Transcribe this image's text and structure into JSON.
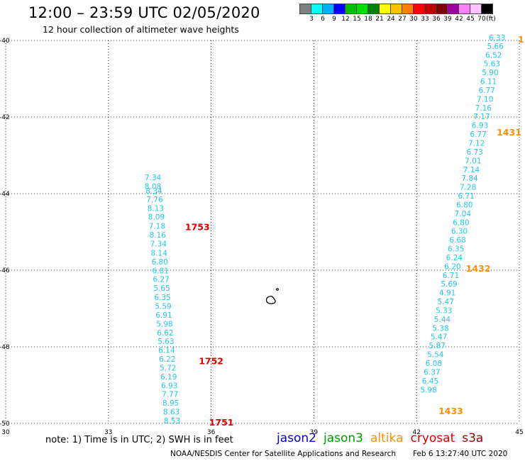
{
  "header": {
    "title": "12:00 – 23:59 UTC 02/05/2020",
    "subtitle": "12 hour collection of altimeter wave heights"
  },
  "legend": {
    "colors": [
      "#808080",
      "#00ffff",
      "#00b0ff",
      "#0000ff",
      "#00c000",
      "#00e000",
      "#008000",
      "#ffff00",
      "#ffc000",
      "#ff8000",
      "#ff0000",
      "#c00000",
      "#800000",
      "#a000a0",
      "#ff80ff",
      "#ffc0ff",
      "#000000"
    ],
    "labels": [
      "3",
      "6",
      "9",
      "12",
      "15",
      "18",
      "21",
      "24",
      "27",
      "30",
      "33",
      "36",
      "39",
      "42",
      "45",
      "70",
      "(ft)"
    ]
  },
  "map": {
    "x_ticks": [
      "30",
      "33",
      "36",
      "39",
      "42",
      "45"
    ],
    "y_ticks": [
      "-40",
      "-42",
      "-44",
      "-46",
      "-48",
      "-50"
    ],
    "xlim": [
      30,
      45
    ],
    "ylim": [
      -50,
      -40
    ],
    "grid": true,
    "wave_color": "#1ec8e6",
    "time_color_red": "#e00000",
    "time_color_orange": "#ff9000"
  },
  "chart_data": {
    "type": "scatter",
    "title": "12:00 – 23:59 UTC 02/05/2020",
    "subtitle": "12 hour collection of altimeter wave heights",
    "xlim": [
      30,
      45
    ],
    "ylim": [
      -50,
      -40
    ],
    "grid": true,
    "track_west": [
      {
        "lon": 34.3,
        "lat": -43.65,
        "swh": "7.34"
      },
      {
        "lon": 34.3,
        "lat": -43.88,
        "swh": "8.08"
      },
      {
        "lon": 34.33,
        "lat": -44.0,
        "swh": "8.34"
      },
      {
        "lon": 34.35,
        "lat": -44.22,
        "swh": "7.76"
      },
      {
        "lon": 34.38,
        "lat": -44.45,
        "swh": "8.13"
      },
      {
        "lon": 34.4,
        "lat": -44.68,
        "swh": "8.09"
      },
      {
        "lon": 34.42,
        "lat": -44.92,
        "swh": "7.18"
      },
      {
        "lon": 34.44,
        "lat": -45.15,
        "swh": "8.16"
      },
      {
        "lon": 34.46,
        "lat": -45.38,
        "swh": "7.34"
      },
      {
        "lon": 34.48,
        "lat": -45.62,
        "swh": "8.14"
      },
      {
        "lon": 34.5,
        "lat": -45.85,
        "swh": "6.80"
      },
      {
        "lon": 34.52,
        "lat": -46.08,
        "swh": "6.81"
      },
      {
        "lon": 34.54,
        "lat": -46.31,
        "swh": "6.27"
      },
      {
        "lon": 34.56,
        "lat": -46.54,
        "swh": "5.65"
      },
      {
        "lon": 34.58,
        "lat": -46.78,
        "swh": "6.35"
      },
      {
        "lon": 34.6,
        "lat": -47.01,
        "swh": "5.59"
      },
      {
        "lon": 34.62,
        "lat": -47.24,
        "swh": "6.91"
      },
      {
        "lon": 34.64,
        "lat": -47.47,
        "swh": "5.98"
      },
      {
        "lon": 34.66,
        "lat": -47.7,
        "swh": "6.62"
      },
      {
        "lon": 34.68,
        "lat": -47.93,
        "swh": "5.63"
      },
      {
        "lon": 34.7,
        "lat": -48.16,
        "swh": "6.14"
      },
      {
        "lon": 34.72,
        "lat": -48.39,
        "swh": "6.22"
      },
      {
        "lon": 34.74,
        "lat": -48.62,
        "swh": "5.72"
      },
      {
        "lon": 34.76,
        "lat": -48.85,
        "swh": "6.19"
      },
      {
        "lon": 34.78,
        "lat": -49.08,
        "swh": "6.93"
      },
      {
        "lon": 34.8,
        "lat": -49.31,
        "swh": "7.77"
      },
      {
        "lon": 34.82,
        "lat": -49.54,
        "swh": "8.95"
      },
      {
        "lon": 34.84,
        "lat": -49.77,
        "swh": "8.63"
      },
      {
        "lon": 34.86,
        "lat": -50.0,
        "swh": "8.53"
      }
    ],
    "track_east": [
      {
        "lon": 44.35,
        "lat": -40.0,
        "swh": "6.33"
      },
      {
        "lon": 44.3,
        "lat": -40.22,
        "swh": "5.66"
      },
      {
        "lon": 44.25,
        "lat": -40.45,
        "swh": "6.52"
      },
      {
        "lon": 44.2,
        "lat": -40.68,
        "swh": "5.63"
      },
      {
        "lon": 44.15,
        "lat": -40.91,
        "swh": "5.90"
      },
      {
        "lon": 44.1,
        "lat": -41.14,
        "swh": "6.11"
      },
      {
        "lon": 44.05,
        "lat": -41.37,
        "swh": "6.77"
      },
      {
        "lon": 44.0,
        "lat": -41.6,
        "swh": "7.10"
      },
      {
        "lon": 43.95,
        "lat": -41.83,
        "swh": "7.16"
      },
      {
        "lon": 43.9,
        "lat": -42.06,
        "swh": "7.17"
      },
      {
        "lon": 43.85,
        "lat": -42.29,
        "swh": "6.93"
      },
      {
        "lon": 43.8,
        "lat": -42.52,
        "swh": "6.77"
      },
      {
        "lon": 43.75,
        "lat": -42.75,
        "swh": "7.12"
      },
      {
        "lon": 43.7,
        "lat": -42.98,
        "swh": "6.73"
      },
      {
        "lon": 43.65,
        "lat": -43.21,
        "swh": "7.01"
      },
      {
        "lon": 43.6,
        "lat": -43.44,
        "swh": "7.14"
      },
      {
        "lon": 43.55,
        "lat": -43.67,
        "swh": "7.84"
      },
      {
        "lon": 43.5,
        "lat": -43.9,
        "swh": "7.28"
      },
      {
        "lon": 43.45,
        "lat": -44.13,
        "swh": "6.71"
      },
      {
        "lon": 43.4,
        "lat": -44.36,
        "swh": "6.80"
      },
      {
        "lon": 43.35,
        "lat": -44.59,
        "swh": "7.04"
      },
      {
        "lon": 43.3,
        "lat": -44.82,
        "swh": "6.80"
      },
      {
        "lon": 43.25,
        "lat": -45.05,
        "swh": "6.30"
      },
      {
        "lon": 43.2,
        "lat": -45.28,
        "swh": "6.68"
      },
      {
        "lon": 43.15,
        "lat": -45.51,
        "swh": "6.35"
      },
      {
        "lon": 43.1,
        "lat": -45.74,
        "swh": "6.24"
      },
      {
        "lon": 43.05,
        "lat": -45.97,
        "swh": "6.20"
      },
      {
        "lon": 43.0,
        "lat": -46.2,
        "swh": "6.71"
      },
      {
        "lon": 42.95,
        "lat": -46.43,
        "swh": "5.69"
      },
      {
        "lon": 42.9,
        "lat": -46.66,
        "swh": "4.91"
      },
      {
        "lon": 42.85,
        "lat": -46.89,
        "swh": "5.47"
      },
      {
        "lon": 42.8,
        "lat": -47.12,
        "swh": "5.33"
      },
      {
        "lon": 42.75,
        "lat": -47.35,
        "swh": "5.44"
      },
      {
        "lon": 42.7,
        "lat": -47.58,
        "swh": "5.38"
      },
      {
        "lon": 42.65,
        "lat": -47.81,
        "swh": "5.47"
      },
      {
        "lon": 42.6,
        "lat": -48.04,
        "swh": "5.87"
      },
      {
        "lon": 42.55,
        "lat": -48.27,
        "swh": "5.54"
      },
      {
        "lon": 42.5,
        "lat": -48.5,
        "swh": "6.08"
      },
      {
        "lon": 42.45,
        "lat": -48.73,
        "swh": "6.37"
      },
      {
        "lon": 42.4,
        "lat": -48.96,
        "swh": "6.45"
      },
      {
        "lon": 42.35,
        "lat": -49.19,
        "swh": "5.98"
      }
    ],
    "time_labels": [
      {
        "lon": 35.6,
        "lat": -44.9,
        "text": "1753",
        "color": "#e00000"
      },
      {
        "lon": 36.0,
        "lat": -48.4,
        "text": "1752",
        "color": "#e00000"
      },
      {
        "lon": 36.3,
        "lat": -50.0,
        "text": "1751",
        "color": "#e00000"
      },
      {
        "lon": 45.05,
        "lat": -40.0,
        "text": "1",
        "color": "#ff9000"
      },
      {
        "lon": 44.7,
        "lat": -42.43,
        "text": "1431",
        "color": "#ff9000"
      },
      {
        "lon": 43.8,
        "lat": -45.98,
        "text": "1432",
        "color": "#ff9000"
      },
      {
        "lon": 43.0,
        "lat": -49.7,
        "text": "1433",
        "color": "#ff9000"
      }
    ]
  },
  "footer": {
    "note": "note:  1) Time is in UTC;  2) SWH is in feet",
    "satellites": [
      {
        "name": "jason2",
        "color": "#0000e0"
      },
      {
        "name": "jason3",
        "color": "#00a000"
      },
      {
        "name": "altika",
        "color": "#ff9000"
      },
      {
        "name": "cryosat",
        "color": "#e00000"
      },
      {
        "name": "s3a",
        "color": "#a00000"
      }
    ],
    "credit": "NOAA/NESDIS Center for Satellite Applications and Research",
    "date": "Feb  6 13:27:40 UTC 2020"
  }
}
